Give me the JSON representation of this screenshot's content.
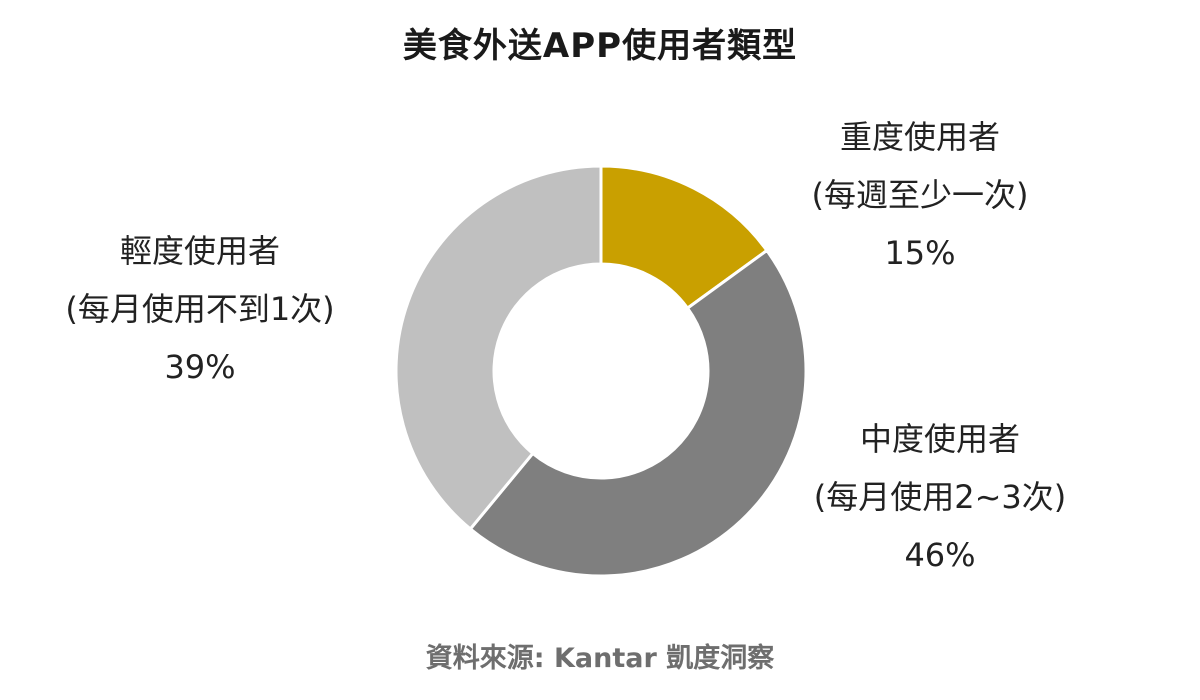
{
  "chart_data": {
    "type": "pie",
    "title": "美食外送APP使用者類型",
    "slices": [
      {
        "name": "重度使用者",
        "detail": "(每週至少一次)",
        "value": 15,
        "value_label": "15%",
        "color": "#c9a000"
      },
      {
        "name": "中度使用者",
        "detail": "(每月使用2~3次)",
        "value": 46,
        "value_label": "46%",
        "color": "#7f7f7f"
      },
      {
        "name": "輕度使用者",
        "detail": "(每月使用不到1次)",
        "value": 39,
        "value_label": "39%",
        "color": "#c0c0c0"
      }
    ],
    "source": "資料來源: Kantar  凱度洞察",
    "donut": true,
    "start": "12 o'clock",
    "direction": "clockwise"
  }
}
